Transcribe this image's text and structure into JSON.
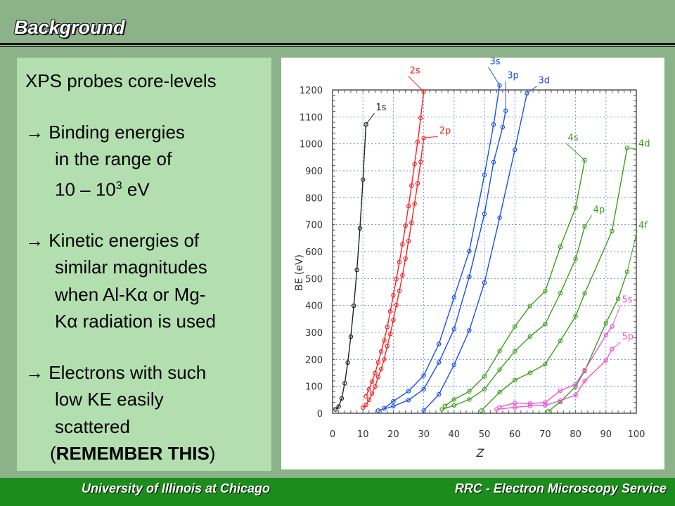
{
  "slide": {
    "title": "Background",
    "bullets": {
      "b1": "XPS probes core-levels",
      "b2_l1": "→ Binding energies",
      "b2_l2": "in the range of",
      "b2_l3_pre": "10 – 10",
      "b2_l3_sup": "3",
      "b2_l3_post": " eV",
      "b3_l1": "→ Kinetic energies of",
      "b3_l2": "similar magnitudes",
      "b3_l3": "when Al-Kα or Mg-",
      "b3_l4": "Kα radiation is used",
      "b4_l1": "→ Electrons with such",
      "b4_l2": "low KE easily",
      "b4_l3": "scattered",
      "b4_l4_open": "(",
      "b4_l4_bold": "REMEMBER THIS",
      "b4_l4_close": ")"
    },
    "footer": {
      "left": "University of Illinois at Chicago",
      "right": "RRC - Electron Microscopy Service"
    },
    "colors": {
      "background": "#8cb28a",
      "text_panel": "#b3dfb0",
      "footer": "#1c8c1c"
    }
  },
  "chart_data": {
    "type": "scatter",
    "xlabel": "Z",
    "ylabel": "BE (eV)",
    "xlim": [
      0,
      100
    ],
    "ylim": [
      0,
      1200
    ],
    "xticks": [
      0,
      10,
      20,
      30,
      40,
      50,
      60,
      70,
      80,
      90,
      100
    ],
    "yticks": [
      0,
      100,
      200,
      300,
      400,
      500,
      600,
      700,
      800,
      900,
      1000,
      1100,
      1200
    ],
    "grid": true,
    "series": [
      {
        "name": "1s",
        "color": "#222222",
        "x": [
          1,
          2,
          3,
          4,
          5,
          6,
          7,
          8,
          9,
          10,
          11
        ],
        "y": [
          14,
          25,
          55,
          111,
          188,
          284,
          399,
          532,
          686,
          867,
          1072
        ]
      },
      {
        "name": "2s",
        "color": "#ff2020",
        "x": [
          11,
          12,
          13,
          14,
          15,
          16,
          17,
          18,
          19,
          20,
          21,
          22,
          23,
          24,
          25,
          26,
          27,
          28,
          29,
          30
        ],
        "y": [
          63,
          89,
          118,
          149,
          189,
          229,
          270,
          320,
          378,
          438,
          498,
          561,
          627,
          696,
          769,
          845,
          925,
          1008,
          1096,
          1194
        ]
      },
      {
        "name": "2p",
        "color": "#ff2020",
        "x": [
          10,
          11,
          12,
          13,
          14,
          15,
          16,
          17,
          18,
          19,
          20,
          21,
          22,
          23,
          24,
          25,
          26,
          27,
          28,
          29,
          30
        ],
        "y": [
          21,
          31,
          50,
          73,
          99,
          135,
          164,
          200,
          249,
          294,
          346,
          402,
          454,
          512,
          574,
          639,
          707,
          778,
          853,
          933,
          1022
        ]
      },
      {
        "name": "3s",
        "color": "#1a4ff0",
        "x": [
          17,
          20,
          25,
          30,
          35,
          40,
          45,
          50,
          53,
          55
        ],
        "y": [
          18,
          44,
          82,
          140,
          257,
          430,
          602,
          885,
          1072,
          1217
        ]
      },
      {
        "name": "3p",
        "color": "#1a4ff0",
        "x": [
          15,
          20,
          25,
          30,
          35,
          40,
          45,
          50,
          53,
          56,
          57
        ],
        "y": [
          10,
          26,
          49,
          89,
          189,
          312,
          507,
          740,
          932,
          1062,
          1123
        ]
      },
      {
        "name": "3d",
        "color": "#1a4ff0",
        "x": [
          30,
          35,
          40,
          45,
          50,
          55,
          60,
          64
        ],
        "y": [
          10,
          70,
          180,
          307,
          485,
          726,
          978,
          1188
        ]
      },
      {
        "name": "4s",
        "color": "#3aa01a",
        "x": [
          37,
          40,
          45,
          50,
          55,
          60,
          65,
          70,
          75,
          80,
          83
        ],
        "y": [
          27,
          51,
          81,
          137,
          231,
          322,
          398,
          453,
          618,
          763,
          939
        ]
      },
      {
        "name": "4p",
        "color": "#3aa01a",
        "x": [
          36,
          40,
          45,
          50,
          55,
          60,
          65,
          70,
          75,
          80,
          83
        ],
        "y": [
          14,
          29,
          51,
          89,
          162,
          230,
          285,
          331,
          446,
          572,
          693
        ]
      },
      {
        "name": "4d",
        "color": "#3aa01a",
        "x": [
          49,
          55,
          60,
          65,
          70,
          75,
          80,
          83,
          92,
          97
        ],
        "y": [
          10,
          78,
          123,
          150,
          182,
          269,
          360,
          445,
          676,
          985
        ]
      },
      {
        "name": "4f",
        "color": "#3aa01a",
        "x": [
          71,
          75,
          80,
          83,
          90,
          94,
          97
        ],
        "y": [
          7,
          42,
          99,
          157,
          335,
          425,
          525
        ]
      },
      {
        "name": "5s",
        "color": "#ee55cc",
        "x": [
          55,
          60,
          65,
          70,
          75,
          80,
          83,
          90,
          92
        ],
        "y": [
          23,
          38,
          36,
          40,
          84,
          108,
          160,
          290,
          322
        ]
      },
      {
        "name": "5p",
        "color": "#ee55cc",
        "x": [
          54,
          60,
          65,
          70,
          75,
          80,
          83,
          90,
          92
        ],
        "y": [
          14,
          22,
          27,
          29,
          47,
          67,
          120,
          196,
          238
        ]
      }
    ]
  }
}
